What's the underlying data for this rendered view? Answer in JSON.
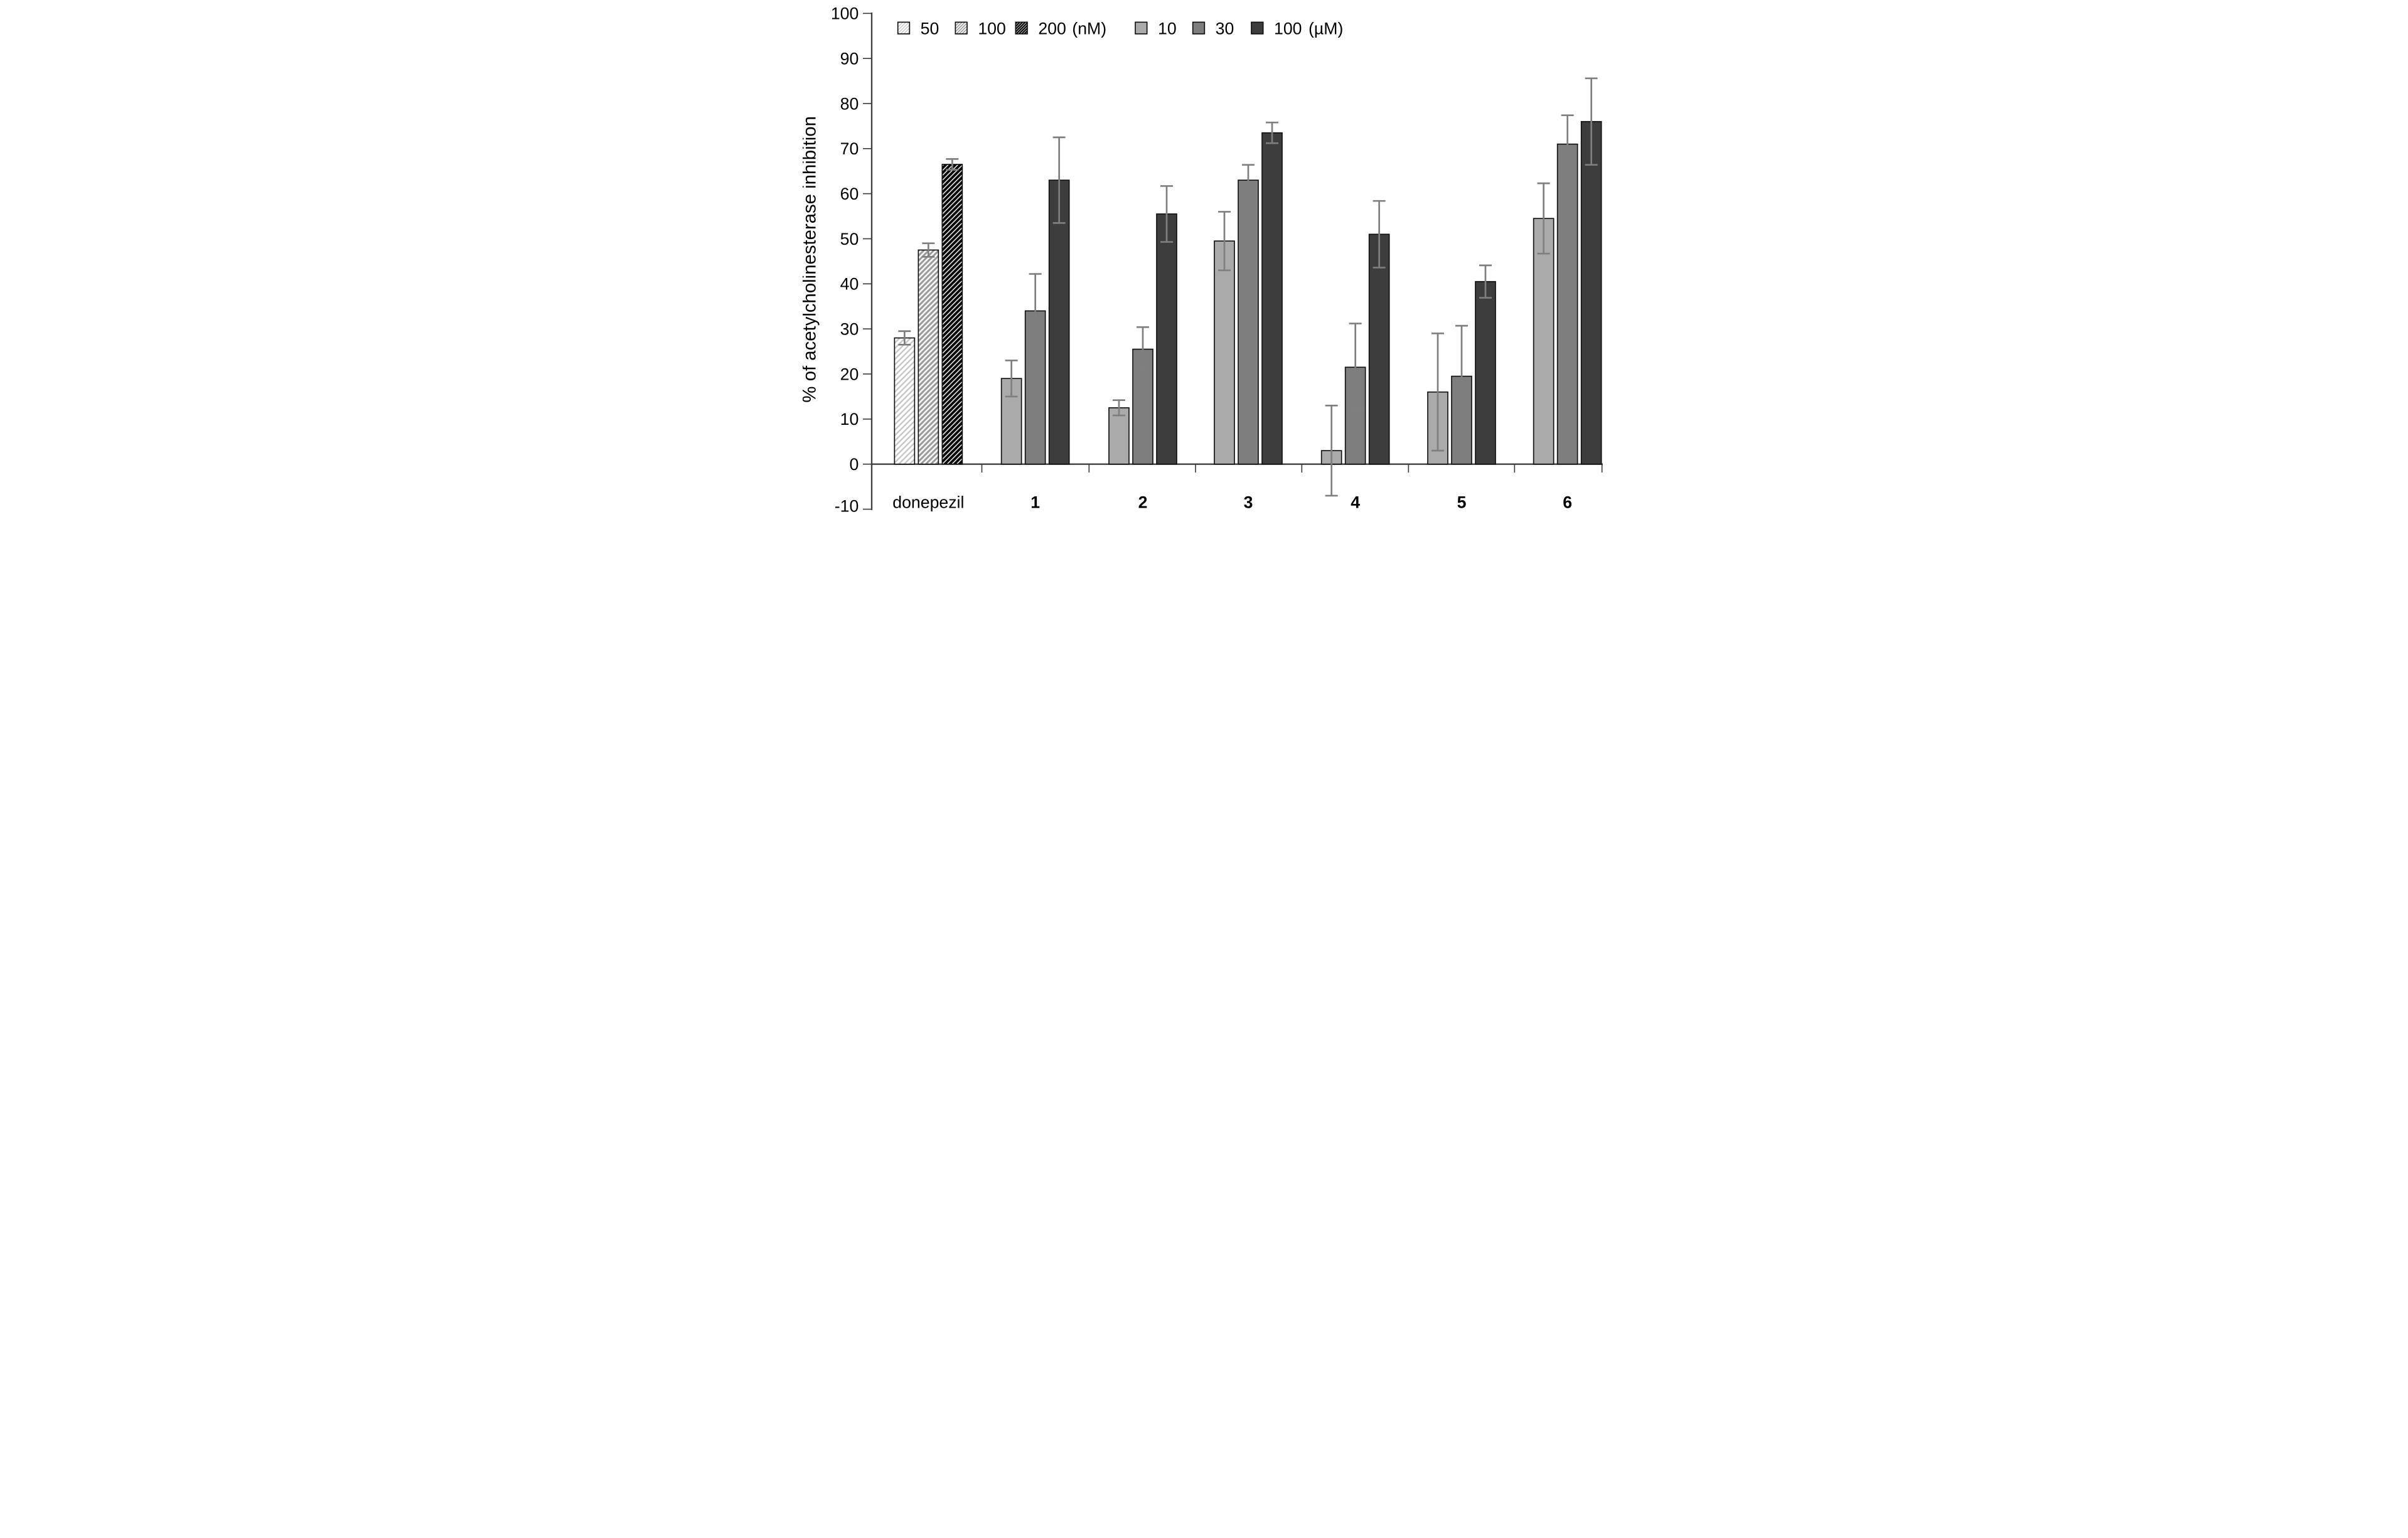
{
  "chart_data": {
    "type": "bar",
    "title": "",
    "xlabel": "",
    "ylabel": "% of acetylcholinesterase inhibition",
    "ylim": [
      -10,
      100
    ],
    "ytick_step": 10,
    "grid": false,
    "legend_position": "top",
    "categories": [
      "donepezil",
      "1",
      "2",
      "3",
      "4",
      "5",
      "6"
    ],
    "legend": {
      "nM": {
        "unit_label": "(nM)",
        "items": [
          {
            "label": "50",
            "style": "hatch-light"
          },
          {
            "label": "100",
            "style": "hatch-medium"
          },
          {
            "label": "200",
            "style": "hatch-dark"
          }
        ]
      },
      "uM": {
        "unit_label": "(µM)",
        "items": [
          {
            "label": "10",
            "style": "solid-light"
          },
          {
            "label": "30",
            "style": "solid-medium"
          },
          {
            "label": "100",
            "style": "solid-dark"
          }
        ]
      }
    },
    "styles": {
      "hatch-light": {
        "type": "hatch",
        "stroke": "#c6c6c6",
        "bg": "#ffffff"
      },
      "hatch-medium": {
        "type": "hatch",
        "stroke": "#999999",
        "bg": "#ffffff"
      },
      "hatch-dark": {
        "type": "hatch",
        "stroke": "#0a0a0a",
        "bg": "#ffffff"
      },
      "solid-light": {
        "type": "solid",
        "color": "#aaaaaa"
      },
      "solid-medium": {
        "type": "solid",
        "color": "#7e7e7e"
      },
      "solid-dark": {
        "type": "solid",
        "color": "#3d3d3d"
      }
    },
    "colors": {
      "bar_outline": "#111111",
      "error_bar": "#7f7f7f",
      "axis": "#3f3f3f",
      "text": "#000000"
    },
    "groups": [
      {
        "label": "donepezil",
        "label_bold": false,
        "bars": [
          {
            "series": "50 nM",
            "style": "hatch-light",
            "value": 28.0,
            "error": 1.5
          },
          {
            "series": "100 nM",
            "style": "hatch-medium",
            "value": 47.5,
            "error": 1.5
          },
          {
            "series": "200 nM",
            "style": "hatch-dark",
            "value": 66.5,
            "error": 1.2
          }
        ]
      },
      {
        "label": "1",
        "label_bold": true,
        "bars": [
          {
            "series": "10 uM",
            "style": "solid-light",
            "value": 19.0,
            "error": 4.0
          },
          {
            "series": "30 uM",
            "style": "solid-medium",
            "value": 34.0,
            "error": 8.2
          },
          {
            "series": "100 uM",
            "style": "solid-dark",
            "value": 63.0,
            "error": 9.5
          }
        ]
      },
      {
        "label": "2",
        "label_bold": true,
        "bars": [
          {
            "series": "10 uM",
            "style": "solid-light",
            "value": 12.5,
            "error": 1.7
          },
          {
            "series": "30 uM",
            "style": "solid-medium",
            "value": 25.5,
            "error": 4.9
          },
          {
            "series": "100 uM",
            "style": "solid-dark",
            "value": 55.5,
            "error": 6.2
          }
        ]
      },
      {
        "label": "3",
        "label_bold": true,
        "bars": [
          {
            "series": "10 uM",
            "style": "solid-light",
            "value": 49.5,
            "error": 6.5
          },
          {
            "series": "30 uM",
            "style": "solid-medium",
            "value": 63.0,
            "error": 3.4
          },
          {
            "series": "100 uM",
            "style": "solid-dark",
            "value": 73.5,
            "error": 2.3
          }
        ]
      },
      {
        "label": "4",
        "label_bold": true,
        "bars": [
          {
            "series": "10 uM",
            "style": "solid-light",
            "value": 3.0,
            "error": 10.0
          },
          {
            "series": "30 uM",
            "style": "solid-medium",
            "value": 21.5,
            "error": 9.7
          },
          {
            "series": "100 uM",
            "style": "solid-dark",
            "value": 51.0,
            "error": 7.4
          }
        ]
      },
      {
        "label": "5",
        "label_bold": true,
        "bars": [
          {
            "series": "10 uM",
            "style": "solid-light",
            "value": 16.0,
            "error": 13.0
          },
          {
            "series": "30 uM",
            "style": "solid-medium",
            "value": 19.5,
            "error": 11.2
          },
          {
            "series": "100 uM",
            "style": "solid-dark",
            "value": 40.5,
            "error": 3.6
          }
        ]
      },
      {
        "label": "6",
        "label_bold": true,
        "bars": [
          {
            "series": "10 uM",
            "style": "solid-light",
            "value": 54.5,
            "error": 7.8
          },
          {
            "series": "30 uM",
            "style": "solid-medium",
            "value": 71.0,
            "error": 6.4
          },
          {
            "series": "100 uM",
            "style": "solid-dark",
            "value": 76.0,
            "error": 9.6
          }
        ]
      }
    ]
  }
}
